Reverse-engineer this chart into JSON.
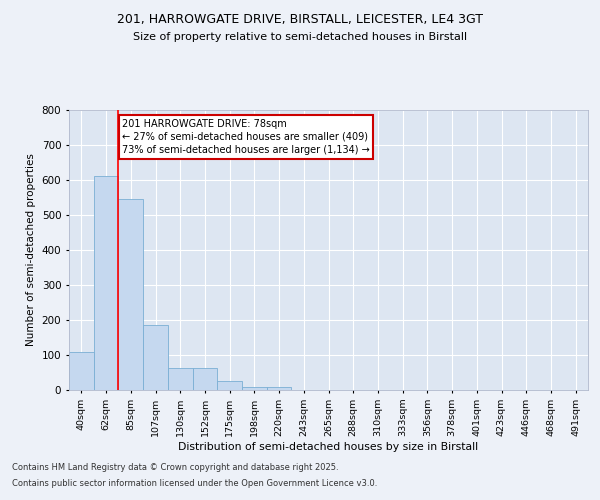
{
  "title1": "201, HARROWGATE DRIVE, BIRSTALL, LEICESTER, LE4 3GT",
  "title2": "Size of property relative to semi-detached houses in Birstall",
  "xlabel": "Distribution of semi-detached houses by size in Birstall",
  "ylabel": "Number of semi-detached properties",
  "categories": [
    "40sqm",
    "62sqm",
    "85sqm",
    "107sqm",
    "130sqm",
    "152sqm",
    "175sqm",
    "198sqm",
    "220sqm",
    "243sqm",
    "265sqm",
    "288sqm",
    "310sqm",
    "333sqm",
    "356sqm",
    "378sqm",
    "401sqm",
    "423sqm",
    "446sqm",
    "468sqm",
    "491sqm"
  ],
  "values": [
    110,
    612,
    547,
    185,
    62,
    62,
    25,
    10,
    8,
    0,
    0,
    0,
    0,
    0,
    0,
    0,
    0,
    0,
    0,
    0,
    0
  ],
  "bar_color": "#c5d8ef",
  "bar_edge_color": "#7aafd4",
  "vline_x": 1.5,
  "annotation_line1": "201 HARROWGATE DRIVE: 78sqm",
  "annotation_line2": "← 27% of semi-detached houses are smaller (409)",
  "annotation_line3": "73% of semi-detached houses are larger (1,134) →",
  "annotation_box_color": "#cc0000",
  "ylim": [
    0,
    800
  ],
  "yticks": [
    0,
    100,
    200,
    300,
    400,
    500,
    600,
    700,
    800
  ],
  "footnote1": "Contains HM Land Registry data © Crown copyright and database right 2025.",
  "footnote2": "Contains public sector information licensed under the Open Government Licence v3.0.",
  "bg_color": "#edf1f8",
  "plot_bg_color": "#dde6f2"
}
